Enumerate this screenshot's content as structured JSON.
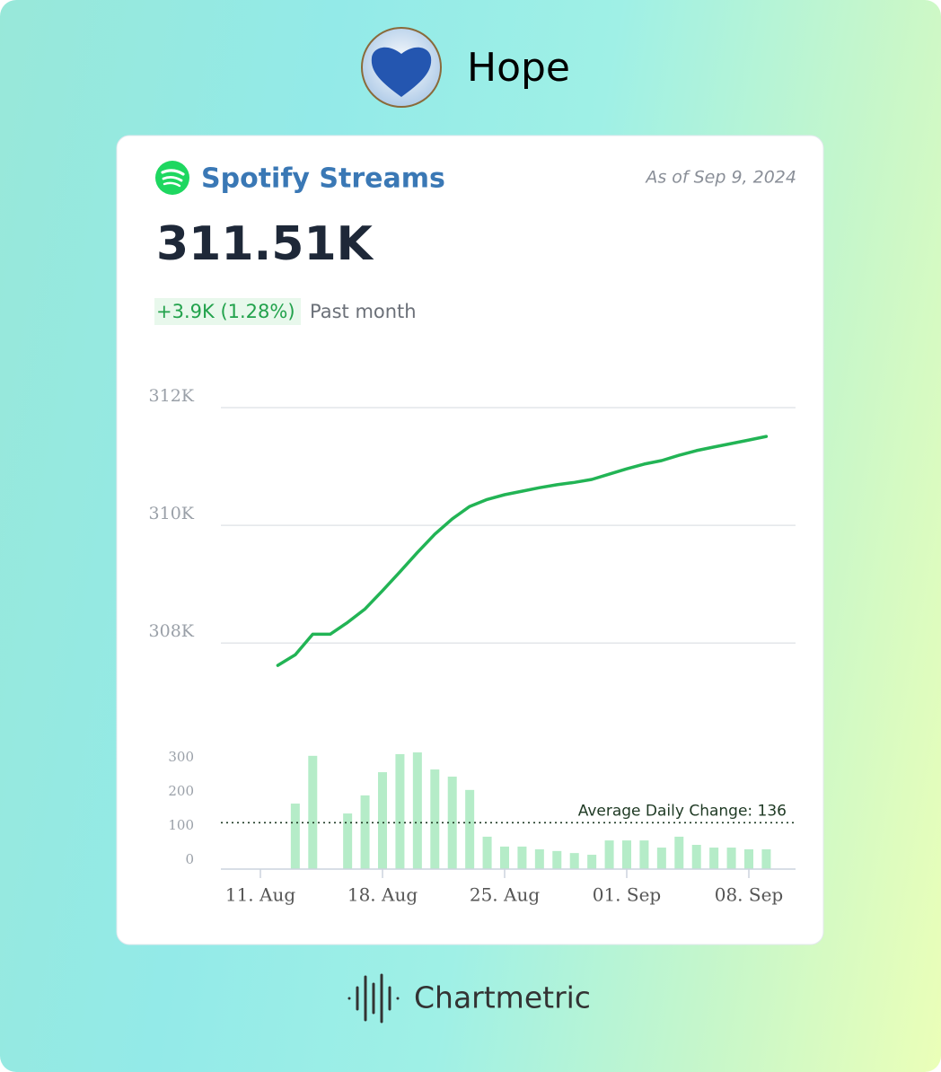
{
  "artist": "Hope",
  "card": {
    "title": "Spotify Streams",
    "as_of": "As of Sep 9, 2024",
    "total": "311.51K",
    "change": "+3.9K (1.28%)",
    "change_period": "Past month"
  },
  "footer": "Chartmetric",
  "chart_data": [
    {
      "type": "line",
      "color": "#22b455",
      "grid": true,
      "x": [
        "12. Aug",
        "13. Aug",
        "14. Aug",
        "15. Aug",
        "16. Aug",
        "17. Aug",
        "18. Aug",
        "19. Aug",
        "20. Aug",
        "21. Aug",
        "22. Aug",
        "23. Aug",
        "24. Aug",
        "25. Aug",
        "26. Aug",
        "27. Aug",
        "28. Aug",
        "29. Aug",
        "30. Aug",
        "31. Aug",
        "01. Sep",
        "02. Sep",
        "03. Sep",
        "04. Sep",
        "05. Sep",
        "06. Sep",
        "07. Sep",
        "08. Sep",
        "09. Sep"
      ],
      "values": [
        307620,
        307800,
        308150,
        308150,
        308350,
        308580,
        308890,
        309210,
        309540,
        309850,
        310110,
        310320,
        310440,
        310520,
        310580,
        310640,
        310690,
        310730,
        310780,
        310870,
        310960,
        311040,
        311100,
        311190,
        311270,
        311330,
        311390,
        311450,
        311510
      ],
      "ylim": [
        307500,
        312000
      ],
      "yticks": [
        {
          "value": 308000,
          "label": "308K"
        },
        {
          "value": 310000,
          "label": "310K"
        },
        {
          "value": 312000,
          "label": "312K"
        }
      ]
    },
    {
      "type": "bar",
      "color": "#b5ecc8",
      "x": [
        "12. Aug",
        "13. Aug",
        "14. Aug",
        "15. Aug",
        "16. Aug",
        "17. Aug",
        "18. Aug",
        "19. Aug",
        "20. Aug",
        "21. Aug",
        "22. Aug",
        "23. Aug",
        "24. Aug",
        "25. Aug",
        "26. Aug",
        "27. Aug",
        "28. Aug",
        "29. Aug",
        "30. Aug",
        "31. Aug",
        "01. Sep",
        "02. Sep",
        "03. Sep",
        "04. Sep",
        "05. Sep",
        "06. Sep",
        "07. Sep",
        "08. Sep",
        "09. Sep"
      ],
      "values": [
        null,
        192,
        332,
        0,
        163,
        216,
        284,
        337,
        342,
        292,
        271,
        232,
        95,
        66,
        66,
        58,
        53,
        47,
        42,
        84,
        84,
        84,
        63,
        95,
        71,
        63,
        63,
        58,
        58
      ],
      "ylim": [
        0,
        350
      ],
      "yticks": [
        0,
        100,
        200,
        300
      ],
      "xticks": [
        "11. Aug",
        "18. Aug",
        "25. Aug",
        "01. Sep",
        "08. Sep"
      ],
      "annotation": {
        "text": "Average Daily Change: 136",
        "value": 136
      }
    }
  ]
}
